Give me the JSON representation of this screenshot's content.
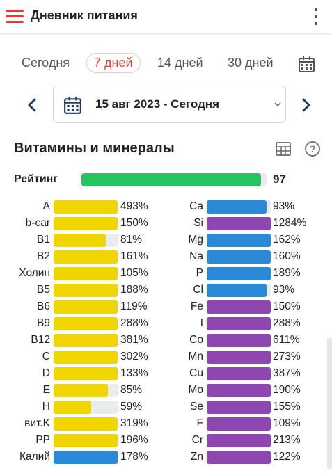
{
  "header": {
    "title": "Дневник питания",
    "menu_icon": "hamburger-menu-icon",
    "more_icon": "kebab-menu-icon"
  },
  "tabs": [
    {
      "label": "Сегодня",
      "active": false
    },
    {
      "label": "7 дней",
      "active": true
    },
    {
      "label": "14 дней",
      "active": false
    },
    {
      "label": "30 дней",
      "active": false
    }
  ],
  "date_range": {
    "label": "15 авг 2023 - Сегодня"
  },
  "section": {
    "title": "Витамины и минералы"
  },
  "rating": {
    "label": "Рейтинг",
    "value": "97",
    "fill_fraction": 0.97
  },
  "colors": {
    "accent": "#e53935",
    "vitamin": "#f0d500",
    "blue": "#2a8ad8",
    "purple": "#8e47b0",
    "green": "#22c55e",
    "track": "#e9ecef"
  },
  "left_column": [
    {
      "name": "A",
      "pct": "493%",
      "fill": 1.0,
      "color": "yellow"
    },
    {
      "name": "b-car",
      "pct": "150%",
      "fill": 1.0,
      "color": "yellow"
    },
    {
      "name": "B1",
      "pct": "81%",
      "fill": 0.81,
      "color": "yellow"
    },
    {
      "name": "B2",
      "pct": "161%",
      "fill": 1.0,
      "color": "yellow"
    },
    {
      "name": "Холин",
      "pct": "105%",
      "fill": 1.0,
      "color": "yellow"
    },
    {
      "name": "B5",
      "pct": "188%",
      "fill": 1.0,
      "color": "yellow"
    },
    {
      "name": "B6",
      "pct": "119%",
      "fill": 1.0,
      "color": "yellow"
    },
    {
      "name": "B9",
      "pct": "288%",
      "fill": 1.0,
      "color": "yellow"
    },
    {
      "name": "B12",
      "pct": "381%",
      "fill": 1.0,
      "color": "yellow"
    },
    {
      "name": "C",
      "pct": "302%",
      "fill": 1.0,
      "color": "yellow"
    },
    {
      "name": "D",
      "pct": "133%",
      "fill": 1.0,
      "color": "yellow"
    },
    {
      "name": "E",
      "pct": "85%",
      "fill": 0.85,
      "color": "yellow"
    },
    {
      "name": "H",
      "pct": "59%",
      "fill": 0.59,
      "color": "yellow"
    },
    {
      "name": "вит.K",
      "pct": "319%",
      "fill": 1.0,
      "color": "yellow"
    },
    {
      "name": "PP",
      "pct": "196%",
      "fill": 1.0,
      "color": "yellow"
    },
    {
      "name": "Калий",
      "pct": "178%",
      "fill": 1.0,
      "color": "blue"
    }
  ],
  "right_column": [
    {
      "name": "Ca",
      "pct": "93%",
      "fill": 0.93,
      "color": "blue"
    },
    {
      "name": "Si",
      "pct": "1284%",
      "fill": 1.0,
      "color": "purple"
    },
    {
      "name": "Mg",
      "pct": "162%",
      "fill": 1.0,
      "color": "blue"
    },
    {
      "name": "Na",
      "pct": "160%",
      "fill": 1.0,
      "color": "blue"
    },
    {
      "name": "P",
      "pct": "189%",
      "fill": 1.0,
      "color": "blue"
    },
    {
      "name": "Cl",
      "pct": "93%",
      "fill": 0.93,
      "color": "blue"
    },
    {
      "name": "Fe",
      "pct": "150%",
      "fill": 1.0,
      "color": "purple"
    },
    {
      "name": "I",
      "pct": "288%",
      "fill": 1.0,
      "color": "purple"
    },
    {
      "name": "Co",
      "pct": "611%",
      "fill": 1.0,
      "color": "purple"
    },
    {
      "name": "Mn",
      "pct": "273%",
      "fill": 1.0,
      "color": "purple"
    },
    {
      "name": "Cu",
      "pct": "387%",
      "fill": 1.0,
      "color": "purple"
    },
    {
      "name": "Mo",
      "pct": "190%",
      "fill": 1.0,
      "color": "purple"
    },
    {
      "name": "Se",
      "pct": "155%",
      "fill": 1.0,
      "color": "purple"
    },
    {
      "name": "F",
      "pct": "109%",
      "fill": 1.0,
      "color": "purple"
    },
    {
      "name": "Cr",
      "pct": "213%",
      "fill": 1.0,
      "color": "purple"
    },
    {
      "name": "Zn",
      "pct": "122%",
      "fill": 1.0,
      "color": "purple"
    }
  ]
}
